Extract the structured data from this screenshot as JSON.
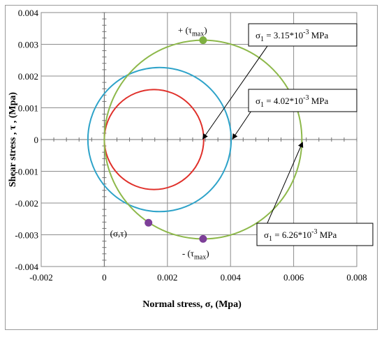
{
  "chart_data": {
    "type": "scatter",
    "xlabel": "Normal stress, σ, (Mpa)",
    "ylabel": "Shear stress , τ , (Mpa)",
    "xlim": [
      -0.002,
      0.008
    ],
    "ylim": [
      -0.004,
      0.004
    ],
    "xticks": [
      "-0.002",
      "0",
      "0.002",
      "0.004",
      "0.006",
      "0.008"
    ],
    "yticks": [
      "0.004",
      "0.003",
      "0.002",
      "0.001",
      "0",
      "-0.001",
      "-0.002",
      "-0.003",
      "-0.004"
    ],
    "grid": true,
    "circles": [
      {
        "center": [
          0.001575,
          0
        ],
        "radius": 0.001575,
        "color": "#e0302a"
      },
      {
        "center": [
          0.00175,
          0
        ],
        "radius": 0.00227,
        "color": "#2ea3c9"
      },
      {
        "center": [
          0.00313,
          0
        ],
        "radius": 0.00313,
        "color": "#8db84a"
      }
    ],
    "points": [
      {
        "x": 0.00313,
        "y": 0.00313,
        "color": "#7fb041",
        "label": "+ (τ",
        "sub": "max",
        "close": ")"
      },
      {
        "x": 0.00313,
        "y": -0.00313,
        "color": "#7d3f98",
        "label": "- (τ",
        "sub": "max",
        "close": ")"
      },
      {
        "x": 0.0014,
        "y": -0.00262,
        "color": "#7d3f98",
        "label": "(σ,τ)",
        "sub": "",
        "close": ""
      }
    ],
    "callouts": [
      {
        "sigma": "σ",
        "sub": "1",
        "text": " = 3.15*10",
        "exp": "-3",
        "unit": " MPa",
        "target": [
          0.0031,
          0.0
        ]
      },
      {
        "sigma": "σ",
        "sub": "1",
        "text": " = 4.02*10",
        "exp": "-3",
        "unit": " MPa",
        "target": [
          0.00402,
          0.0
        ]
      },
      {
        "sigma": "σ",
        "sub": "1",
        "text": " = 6.26*10",
        "exp": "-3",
        "unit": " MPa",
        "target": [
          0.00626,
          0.0
        ]
      }
    ]
  }
}
